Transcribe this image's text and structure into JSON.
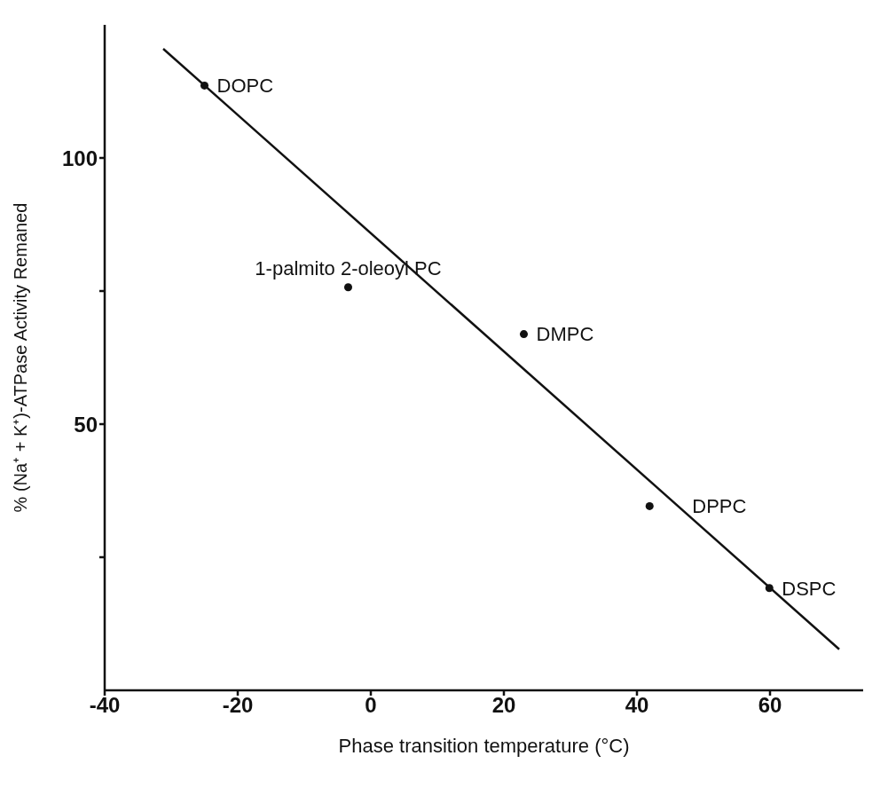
{
  "chart_data": {
    "type": "scatter",
    "xlabel": "Phase transition temperature (°C)",
    "ylabel": "% (Na⁺ + K⁺)-ATPase Activity Remaned",
    "xlim": [
      -40,
      74
    ],
    "xticks": [
      -40,
      -20,
      0,
      20,
      40,
      60
    ],
    "ylim": [
      0,
      125
    ],
    "yticks": [
      {
        "value": 25,
        "label": null
      },
      50,
      {
        "value": 75,
        "label": null
      },
      100
    ],
    "series": [
      {
        "color": "#111111",
        "marker": "circle",
        "x": [
          -25,
          -3.4,
          23,
          41.9,
          59.9
        ],
        "values": [
          113.6,
          75.7,
          66.9,
          34.6,
          19.2
        ]
      },
      {
        "type": "line",
        "color": "#111111",
        "marker": "none",
        "x": [
          -31.2,
          70.4
        ],
        "values": [
          120.5,
          7.7
        ]
      }
    ],
    "annotations": [
      {
        "text": "DOPC",
        "x": -25,
        "y": 113.6
      },
      {
        "text": "1-palmito 2-oleoyl PC",
        "x": -3.4,
        "y": 75.7
      },
      {
        "text": "DMPC",
        "x": 23,
        "y": 66.9
      },
      {
        "text": "DPPC",
        "x": 41.9,
        "y": 34.6
      },
      {
        "text": "DSPC",
        "x": 59.9,
        "y": 19.2
      }
    ]
  }
}
